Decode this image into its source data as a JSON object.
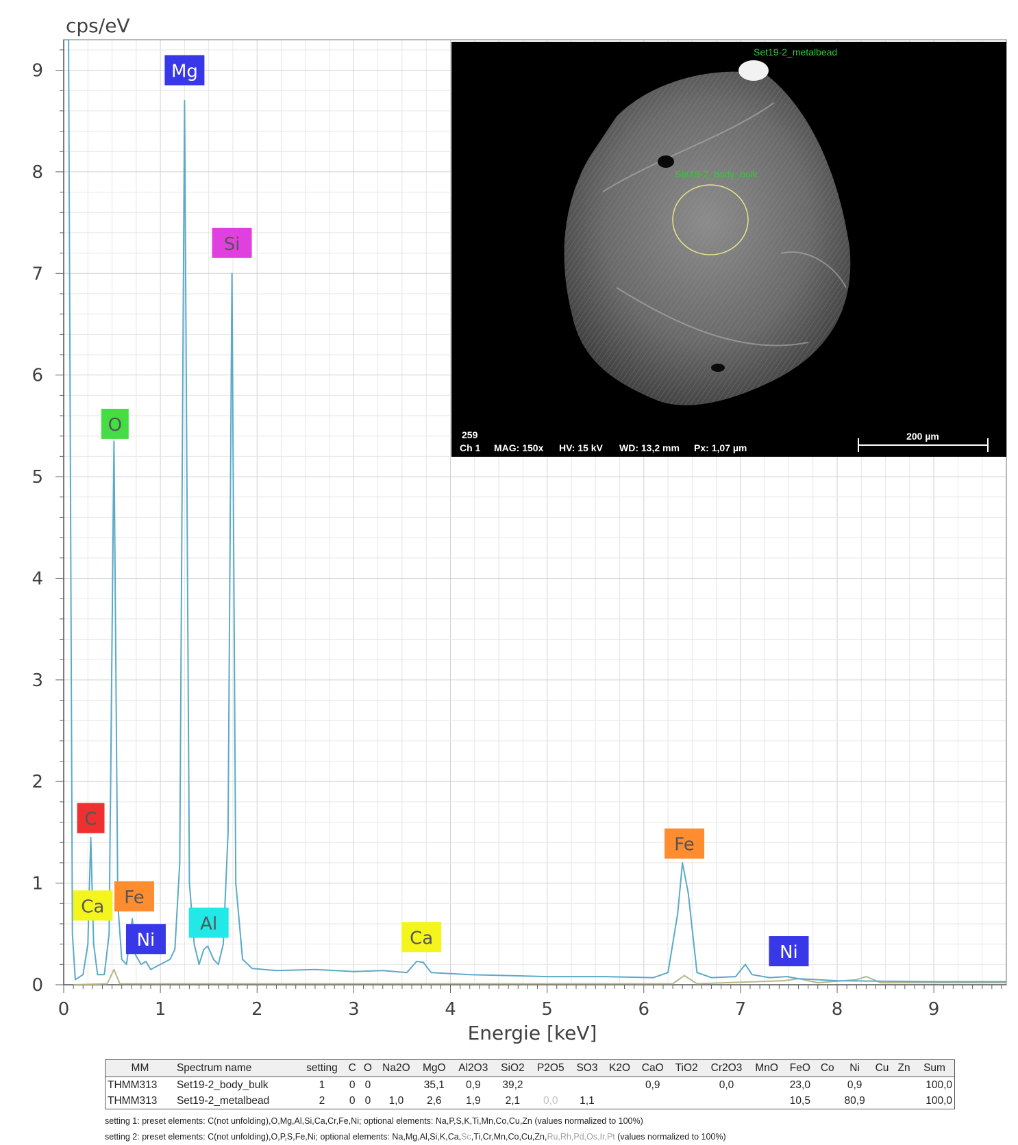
{
  "chart_data": {
    "type": "line",
    "ylabel": "cps/eV",
    "xlabel": "Energie [keV]",
    "xlim": [
      0,
      9.75
    ],
    "ylim": [
      0,
      9.3
    ],
    "x_ticks": [
      0,
      1,
      2,
      3,
      4,
      5,
      6,
      7,
      8,
      9
    ],
    "y_ticks": [
      0,
      1,
      2,
      3,
      4,
      5,
      6,
      7,
      8,
      9
    ],
    "grid": true,
    "series": [
      {
        "color": "#5aaac8",
        "points": [
          [
            0.0,
            9.3
          ],
          [
            0.05,
            9.3
          ],
          [
            0.09,
            0.5
          ],
          [
            0.12,
            0.05
          ],
          [
            0.2,
            0.1
          ],
          [
            0.25,
            0.4
          ],
          [
            0.28,
            1.45
          ],
          [
            0.31,
            0.4
          ],
          [
            0.35,
            0.1
          ],
          [
            0.42,
            0.1
          ],
          [
            0.47,
            0.5
          ],
          [
            0.52,
            5.35
          ],
          [
            0.56,
            0.8
          ],
          [
            0.6,
            0.25
          ],
          [
            0.65,
            0.2
          ],
          [
            0.71,
            0.65
          ],
          [
            0.74,
            0.3
          ],
          [
            0.8,
            0.2
          ],
          [
            0.85,
            0.23
          ],
          [
            0.9,
            0.15
          ],
          [
            1.0,
            0.2
          ],
          [
            1.1,
            0.25
          ],
          [
            1.15,
            0.35
          ],
          [
            1.2,
            1.2
          ],
          [
            1.25,
            8.7
          ],
          [
            1.3,
            1.0
          ],
          [
            1.35,
            0.4
          ],
          [
            1.4,
            0.2
          ],
          [
            1.45,
            0.35
          ],
          [
            1.49,
            0.38
          ],
          [
            1.55,
            0.25
          ],
          [
            1.6,
            0.2
          ],
          [
            1.65,
            0.4
          ],
          [
            1.7,
            1.5
          ],
          [
            1.74,
            7.0
          ],
          [
            1.78,
            1.0
          ],
          [
            1.85,
            0.25
          ],
          [
            1.95,
            0.16
          ],
          [
            2.2,
            0.14
          ],
          [
            2.6,
            0.15
          ],
          [
            3.0,
            0.13
          ],
          [
            3.3,
            0.14
          ],
          [
            3.55,
            0.12
          ],
          [
            3.65,
            0.23
          ],
          [
            3.72,
            0.22
          ],
          [
            3.8,
            0.12
          ],
          [
            4.2,
            0.1
          ],
          [
            5.0,
            0.08
          ],
          [
            5.6,
            0.08
          ],
          [
            6.1,
            0.07
          ],
          [
            6.25,
            0.12
          ],
          [
            6.35,
            0.7
          ],
          [
            6.4,
            1.2
          ],
          [
            6.46,
            0.9
          ],
          [
            6.55,
            0.12
          ],
          [
            6.7,
            0.07
          ],
          [
            6.95,
            0.08
          ],
          [
            7.05,
            0.2
          ],
          [
            7.12,
            0.1
          ],
          [
            7.3,
            0.07
          ],
          [
            7.48,
            0.08
          ],
          [
            7.6,
            0.06
          ],
          [
            8.0,
            0.04
          ],
          [
            9.0,
            0.03
          ],
          [
            9.75,
            0.03
          ]
        ]
      },
      {
        "color": "#b5b88a",
        "points": [
          [
            0.1,
            0.0
          ],
          [
            0.45,
            0.01
          ],
          [
            0.52,
            0.15
          ],
          [
            0.58,
            0.01
          ],
          [
            1.0,
            0.01
          ],
          [
            2.0,
            0.01
          ],
          [
            5.0,
            0.01
          ],
          [
            6.3,
            0.01
          ],
          [
            6.42,
            0.09
          ],
          [
            6.55,
            0.01
          ],
          [
            7.45,
            0.04
          ],
          [
            7.6,
            0.06
          ],
          [
            7.8,
            0.02
          ],
          [
            8.2,
            0.05
          ],
          [
            8.3,
            0.08
          ],
          [
            8.45,
            0.02
          ],
          [
            9.0,
            0.02
          ],
          [
            9.75,
            0.02
          ]
        ]
      }
    ],
    "peak_labels": [
      {
        "text": "Mg",
        "x": 1.25,
        "y": 9.0,
        "color": "#3838e8"
      },
      {
        "text": "Si",
        "x": 1.74,
        "y": 7.3,
        "color": "#e040e0"
      },
      {
        "text": "O",
        "x": 0.53,
        "y": 5.52,
        "color": "#44dd44"
      },
      {
        "text": "C",
        "x": 0.28,
        "y": 1.64,
        "color": "#ee3030"
      },
      {
        "text": "Ca",
        "x": 0.3,
        "y": 0.78,
        "color": "#f5f51e"
      },
      {
        "text": "Fe",
        "x": 0.73,
        "y": 0.87,
        "color": "#ff8c2e"
      },
      {
        "text": "Ni",
        "x": 0.85,
        "y": 0.45,
        "color": "#3838e8"
      },
      {
        "text": "Al",
        "x": 1.5,
        "y": 0.61,
        "color": "#22e8e8"
      },
      {
        "text": "Ca",
        "x": 3.7,
        "y": 0.47,
        "color": "#f5f51e"
      },
      {
        "text": "Fe",
        "x": 6.42,
        "y": 1.39,
        "color": "#ff8c2e"
      },
      {
        "text": "Ni",
        "x": 7.5,
        "y": 0.33,
        "color": "#3838e8"
      }
    ]
  },
  "sem_image": {
    "tag_top": "Set19-2_metalbead",
    "tag_center": "Set19-2_body_bulk",
    "frame": "259",
    "channel": "Ch 1",
    "mag": "MAG: 150x",
    "hv": "HV: 15 kV",
    "wd": "WD: 13,2 mm",
    "px": "Px: 1,07 µm",
    "scale": "200 µm"
  },
  "table": {
    "headers": [
      "MM",
      "Spectrum name",
      "setting",
      "C",
      "O",
      "Na2O",
      "MgO",
      "Al2O3",
      "SiO2",
      "P2O5",
      "SO3",
      "K2O",
      "CaO",
      "TiO2",
      "Cr2O3",
      "MnO",
      "FeO",
      "Co",
      "Ni",
      "Cu",
      "Zn",
      "Sum"
    ],
    "rows": [
      [
        "THMM313",
        "Set19-2_body_bulk",
        "1",
        "0",
        "0",
        "",
        "35,1",
        "0,9",
        "39,2",
        "",
        "",
        "",
        "0,9",
        "",
        "0,0",
        "",
        "23,0",
        "",
        "0,9",
        "",
        "",
        "100,0"
      ],
      [
        "THMM313",
        "Set19-2_metalbead",
        "2",
        "0",
        "0",
        "1,0",
        "2,6",
        "1,9",
        "2,1",
        "0,0",
        "1,1",
        "",
        "",
        "",
        "",
        "",
        "10,5",
        "",
        "80,9",
        "",
        "",
        "100,0"
      ]
    ]
  },
  "notes": {
    "n1_a": "setting 1: preset elements: C(not unfolding),O,Mg,Al,Si,Ca,Cr,Fe,Ni; optional elements: Na,P,S,K,Ti,Mn,Co,Cu,Zn (values normalized to 100%)",
    "n2_a": "setting 2: preset elements: C(not unfolding),O,P,S,Fe,Ni; optional elements: Na,Mg,Al,Si,K,Ca,",
    "n2_b": "Sc",
    "n2_c": ",Ti,Cr,Mn,Co,Cu,Zn,",
    "n2_d": "Ru,Rh,Pd,Os,Ir,Pt",
    "n2_e": " (values normalized to 100%)"
  }
}
